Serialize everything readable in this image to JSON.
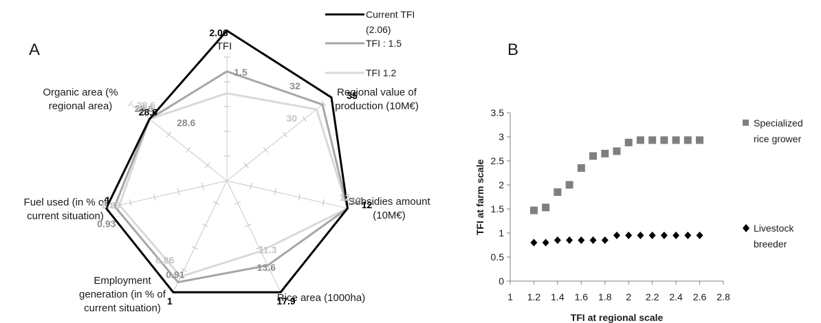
{
  "chart_data": [
    {
      "panel_label": "A",
      "type": "radar",
      "axes": [
        {
          "label": "TFI"
        },
        {
          "label": "Regional value of production (10M€)"
        },
        {
          "label": "Subsidies amount (10M€)"
        },
        {
          "label": "Rice area (1000ha)"
        },
        {
          "label": "Employment generation (in % of current situation)"
        },
        {
          "label": "Fuel used (in % of current situation)"
        },
        {
          "label": "Organic area (% regional area)"
        }
      ],
      "axis_label_lines": [
        [
          "TFI"
        ],
        [
          "Regional value of",
          "production (10M€)"
        ],
        [
          "Subsidies amount",
          "(10M€)"
        ],
        [
          "Rice area (1000ha)"
        ],
        [
          "Employment",
          "generation (in % of",
          "current situation)"
        ],
        [
          "Fuel used (in % of",
          "current situation)"
        ],
        [
          "Organic area (%",
          "regional area)"
        ]
      ],
      "series": [
        {
          "name": "Current TFI (2.06)",
          "name_lines": [
            "Current TFI",
            "(2.06)"
          ],
          "color": "#000000",
          "values": [
            2.06,
            35,
            12,
            17.9,
            1,
            1,
            28.6
          ],
          "value_labels": [
            "2.06",
            "35",
            "12",
            "17.9",
            "1",
            "1",
            "28.6"
          ]
        },
        {
          "name": "TFI : 1.5",
          "name_lines": [
            "TFI : 1.5"
          ],
          "color": "#a6a6a6",
          "values": [
            1.5,
            32,
            12,
            13.6,
            0.91,
            0.93,
            28.6
          ],
          "value_labels": [
            "1.5",
            "32",
            "12",
            "13.6",
            "0.91",
            "0.93",
            "28.6"
          ]
        },
        {
          "name": "TFI 1.2",
          "name_lines": [
            "TFI 1.2"
          ],
          "color": "#d9d9d9",
          "values": [
            1.2,
            30,
            12,
            11.3,
            0.86,
            0.89,
            28.6
          ],
          "value_labels": [
            "",
            "30",
            "12",
            "11.3",
            "0.86",
            "0.89",
            "28.6"
          ]
        }
      ]
    },
    {
      "panel_label": "B",
      "type": "scatter",
      "xlabel": "TFI at regional scale",
      "ylabel": "TFI at farm scale",
      "xlim": [
        1,
        2.8
      ],
      "ylim": [
        0,
        3.5
      ],
      "xticks": [
        "1",
        "1.2",
        "1.4",
        "1.6",
        "1.8",
        "2",
        "2.2",
        "2.4",
        "2.6",
        "2.8"
      ],
      "yticks": [
        "0",
        "0.5",
        "1",
        "1.5",
        "2",
        "2.5",
        "3",
        "3.5"
      ],
      "series": [
        {
          "name": "Specialized rice grower",
          "name_lines": [
            "Specialized",
            "rice grower"
          ],
          "marker": "square",
          "color": "#7f7f7f",
          "x": [
            1.2,
            1.3,
            1.4,
            1.5,
            1.6,
            1.7,
            1.8,
            1.9,
            2.0,
            2.1,
            2.2,
            2.3,
            2.4,
            2.5,
            2.6
          ],
          "y": [
            1.47,
            1.53,
            1.85,
            2.0,
            2.35,
            2.6,
            2.65,
            2.7,
            2.88,
            2.93,
            2.93,
            2.93,
            2.93,
            2.93,
            2.93
          ]
        },
        {
          "name": "Livestock breeder",
          "name_lines": [
            "Livestock",
            "breeder"
          ],
          "marker": "diamond",
          "color": "#000000",
          "x": [
            1.2,
            1.3,
            1.4,
            1.5,
            1.6,
            1.7,
            1.8,
            1.9,
            2.0,
            2.1,
            2.2,
            2.3,
            2.4,
            2.5,
            2.6
          ],
          "y": [
            0.8,
            0.8,
            0.85,
            0.85,
            0.85,
            0.85,
            0.85,
            0.95,
            0.95,
            0.95,
            0.95,
            0.95,
            0.95,
            0.95,
            0.95
          ]
        }
      ]
    }
  ]
}
